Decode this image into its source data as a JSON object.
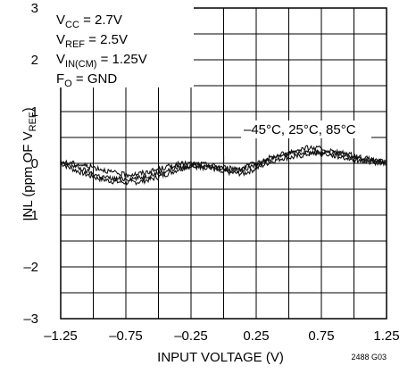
{
  "chart_data": {
    "type": "line",
    "xlabel": "INPUT VOLTAGE (V)",
    "ylabel_parts": [
      "INL (ppm OF V",
      "REF",
      ")"
    ],
    "xlim": [
      -1.25,
      1.25
    ],
    "ylim": [
      -3,
      3
    ],
    "x_ticks": [
      -1.25,
      -0.75,
      -0.25,
      0.25,
      0.75,
      1.25
    ],
    "x_tick_labels": [
      "–1.25",
      "–0.75",
      "–0.25",
      "0.25",
      "0.75",
      "1.25"
    ],
    "y_ticks": [
      -3,
      -2,
      -1,
      0,
      1,
      2,
      3
    ],
    "y_tick_labels": [
      "–3",
      "–2",
      "–1",
      "0",
      "1",
      "2",
      "3"
    ],
    "grid": true,
    "grid_x_step": 0.25,
    "grid_y_step": 0.5,
    "conditions": [
      {
        "main": "V",
        "sub": "CC",
        "rest": " = 2.7V"
      },
      {
        "main": "V",
        "sub": "REF",
        "rest": " = 2.5V"
      },
      {
        "main": "V",
        "sub": "IN(CM)",
        "rest": " = 1.25V"
      },
      {
        "main": "F",
        "sub": "O",
        "rest": " = GND"
      }
    ],
    "series_annotation": "–45°C, 25°C, 85°C",
    "figure_code": "2488 G03",
    "series": [
      {
        "x": [
          -1.25,
          -1.15,
          -1.05,
          -0.95,
          -0.85,
          -0.75,
          -0.65,
          -0.55,
          -0.45,
          -0.35,
          -0.25,
          -0.15,
          -0.05,
          0.05,
          0.15,
          0.25,
          0.35,
          0.45,
          0.55,
          0.65,
          0.75,
          0.85,
          0.95,
          1.05,
          1.15,
          1.25
        ],
        "values": [
          0.0,
          -0.12,
          -0.22,
          -0.3,
          -0.35,
          -0.37,
          -0.36,
          -0.3,
          -0.22,
          -0.12,
          -0.05,
          -0.04,
          -0.1,
          -0.18,
          -0.2,
          -0.1,
          0.02,
          0.1,
          0.12,
          0.18,
          0.22,
          0.2,
          0.15,
          0.1,
          0.05,
          0.0
        ]
      },
      {
        "x": [
          -1.25,
          -1.15,
          -1.05,
          -0.95,
          -0.85,
          -0.75,
          -0.65,
          -0.55,
          -0.45,
          -0.35,
          -0.25,
          -0.15,
          -0.05,
          0.05,
          0.15,
          0.25,
          0.35,
          0.45,
          0.55,
          0.65,
          0.75,
          0.85,
          0.95,
          1.05,
          1.15,
          1.25
        ],
        "values": [
          0.0,
          -0.05,
          -0.15,
          -0.25,
          -0.3,
          -0.3,
          -0.28,
          -0.22,
          -0.15,
          -0.08,
          -0.05,
          -0.08,
          -0.12,
          -0.15,
          -0.12,
          -0.02,
          0.1,
          0.18,
          0.25,
          0.3,
          0.28,
          0.22,
          0.18,
          0.12,
          0.06,
          0.02
        ]
      },
      {
        "x": [
          -1.25,
          -1.15,
          -1.05,
          -0.95,
          -0.85,
          -0.75,
          -0.65,
          -0.55,
          -0.45,
          -0.35,
          -0.25,
          -0.15,
          -0.05,
          0.05,
          0.15,
          0.25,
          0.35,
          0.45,
          0.55,
          0.65,
          0.75,
          0.85,
          0.95,
          1.05,
          1.15,
          1.25
        ],
        "values": [
          0.02,
          0.0,
          -0.05,
          -0.1,
          -0.18,
          -0.22,
          -0.2,
          -0.15,
          -0.08,
          -0.02,
          0.0,
          -0.02,
          -0.05,
          -0.1,
          -0.08,
          0.0,
          0.08,
          0.15,
          0.2,
          0.22,
          0.2,
          0.15,
          0.1,
          0.05,
          0.02,
          0.0
        ]
      }
    ]
  }
}
